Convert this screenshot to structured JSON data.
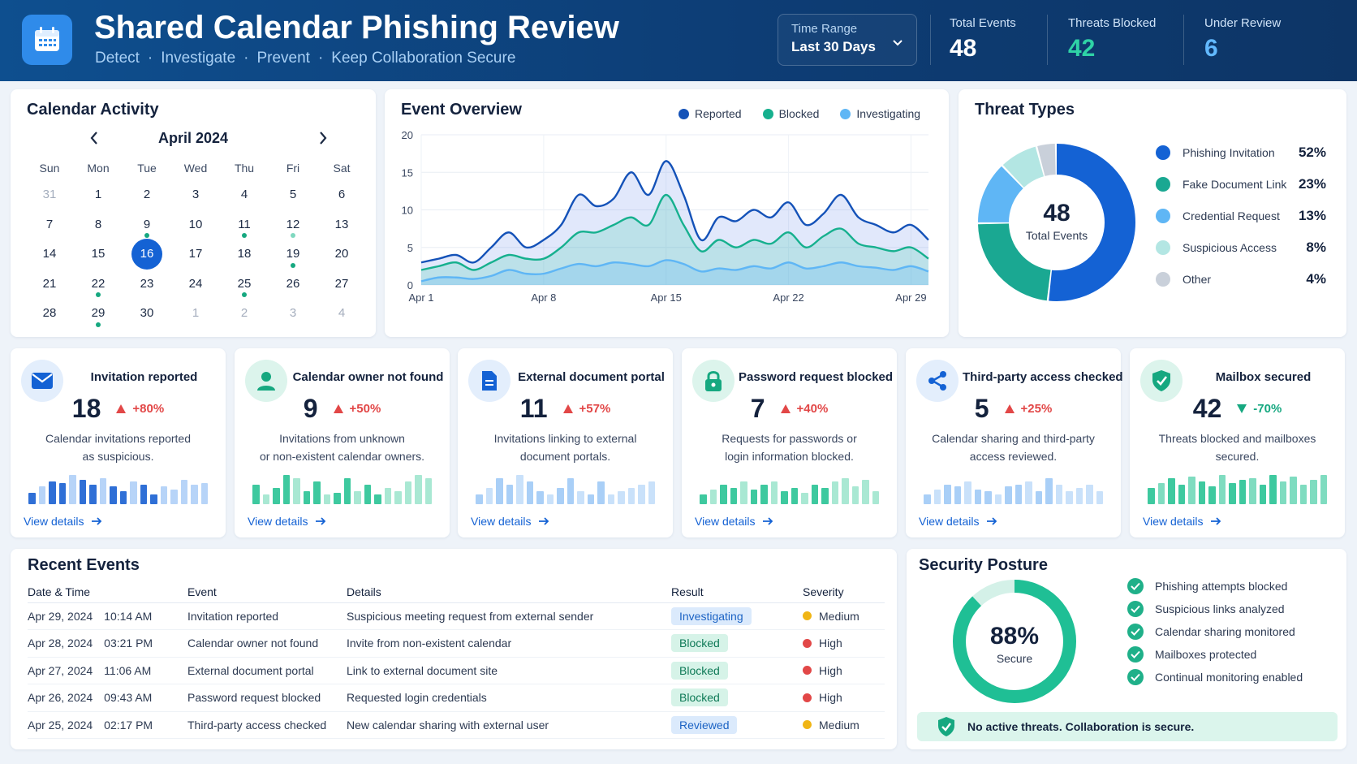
{
  "header": {
    "title": "Shared Calendar Phishing Review",
    "subtitle": [
      "Detect",
      "Investigate",
      "Prevent",
      "Keep Collaboration Secure"
    ],
    "time_range_label": "Time Range",
    "time_range_value": "Last 30 Days",
    "kpis": [
      {
        "label": "Total Events",
        "value": "48",
        "color": "#ffffff"
      },
      {
        "label": "Threats Blocked",
        "value": "42",
        "color": "#2fd3a6"
      },
      {
        "label": "Under Review",
        "value": "6",
        "color": "#62b9ff"
      }
    ]
  },
  "calendar": {
    "title": "Calendar Activity",
    "month": "April 2024",
    "weekdays": [
      "Sun",
      "Mon",
      "Tue",
      "Wed",
      "Thu",
      "Fri",
      "Sat"
    ],
    "weeks": [
      [
        {
          "d": "31",
          "muted": true
        },
        {
          "d": "1"
        },
        {
          "d": "2"
        },
        {
          "d": "3"
        },
        {
          "d": "4"
        },
        {
          "d": "5"
        },
        {
          "d": "6"
        }
      ],
      [
        {
          "d": "7"
        },
        {
          "d": "8"
        },
        {
          "d": "9",
          "dot": "dark"
        },
        {
          "d": "10"
        },
        {
          "d": "11",
          "dot": "dark"
        },
        {
          "d": "12",
          "dot": "light"
        },
        {
          "d": "13"
        }
      ],
      [
        {
          "d": "14"
        },
        {
          "d": "15"
        },
        {
          "d": "16",
          "today": true
        },
        {
          "d": "17"
        },
        {
          "d": "18"
        },
        {
          "d": "19",
          "dot": "dark"
        },
        {
          "d": "20"
        }
      ],
      [
        {
          "d": "21"
        },
        {
          "d": "22",
          "dot": "dark"
        },
        {
          "d": "23"
        },
        {
          "d": "24"
        },
        {
          "d": "25",
          "dot": "dark"
        },
        {
          "d": "26"
        },
        {
          "d": "27"
        }
      ],
      [
        {
          "d": "28"
        },
        {
          "d": "29",
          "dot": "dark"
        },
        {
          "d": "30"
        },
        {
          "d": "1",
          "muted": true
        },
        {
          "d": "2",
          "muted": true
        },
        {
          "d": "3",
          "muted": true
        },
        {
          "d": "4",
          "muted": true
        }
      ]
    ]
  },
  "event_overview": {
    "title": "Event Overview",
    "legend": [
      {
        "name": "Reported",
        "color": "#1452b8"
      },
      {
        "name": "Blocked",
        "color": "#16b08e"
      },
      {
        "name": "Investigating",
        "color": "#5fb6f5"
      }
    ]
  },
  "chart_data": {
    "type": "area",
    "x_ticks": [
      "Apr 1",
      "Apr 8",
      "Apr 15",
      "Apr 22",
      "Apr 29"
    ],
    "x": [
      1,
      2,
      3,
      4,
      5,
      6,
      7,
      8,
      9,
      10,
      11,
      12,
      13,
      14,
      15,
      16,
      17,
      18,
      19,
      20,
      21,
      22,
      23,
      24,
      25,
      26,
      27,
      28,
      29,
      30
    ],
    "ylim": [
      0,
      20
    ],
    "y_ticks": [
      0,
      5,
      10,
      15,
      20
    ],
    "grid": true,
    "series": [
      {
        "name": "Reported",
        "color": "#1452b8",
        "values": [
          3,
          3.5,
          4,
          3,
          5,
          7,
          5,
          6,
          8,
          12,
          10.5,
          11.5,
          15,
          12,
          16.5,
          12,
          6,
          9,
          8.5,
          10,
          9,
          11,
          8,
          9.5,
          12,
          9,
          8,
          7,
          8,
          6
        ]
      },
      {
        "name": "Blocked",
        "color": "#16b08e",
        "values": [
          2,
          2.5,
          3,
          2,
          3,
          4,
          3.5,
          3.5,
          5,
          7,
          7,
          8,
          9,
          8,
          12,
          8,
          4.5,
          6,
          5,
          6,
          5.5,
          7,
          5,
          6.5,
          7.5,
          5.5,
          5,
          4.5,
          5,
          3.5
        ]
      },
      {
        "name": "Investigating",
        "color": "#5fb6f5",
        "values": [
          0.5,
          1,
          1,
          0.8,
          1.2,
          2,
          1.5,
          1.5,
          2.2,
          2.8,
          2.5,
          3,
          2.8,
          2.5,
          3.3,
          2.8,
          1.8,
          2.2,
          2,
          2.5,
          2.2,
          3,
          2.2,
          2.5,
          3,
          2.5,
          2.3,
          2,
          2.5,
          1.8
        ]
      }
    ]
  },
  "threat_types": {
    "title": "Threat Types",
    "center_value": "48",
    "center_label": "Total Events",
    "items": [
      {
        "name": "Phishing Invitation",
        "pct": "52%",
        "value": 52,
        "color": "#1462d4"
      },
      {
        "name": "Fake Document Link",
        "pct": "23%",
        "value": 23,
        "color": "#1aa892"
      },
      {
        "name": "Credential Request",
        "pct": "13%",
        "value": 13,
        "color": "#5fb6f5"
      },
      {
        "name": "Suspicious Access",
        "pct": "8%",
        "value": 8,
        "color": "#b3e6e3"
      },
      {
        "name": "Other",
        "pct": "4%",
        "value": 4,
        "color": "#c9d0da"
      }
    ]
  },
  "cards": [
    {
      "icon": "envelope-icon",
      "icon_bg": "#e3eefc",
      "icon_color": "#1462d4",
      "title": "Invitation reported",
      "value": "18",
      "delta": "+80%",
      "trend": "up",
      "desc1": "Calendar invitations reported",
      "desc2": "as suspicious.",
      "bars_color": "#2f6fd6",
      "bars_color_light": "#b7d4f8",
      "bars": [
        0.35,
        0.55,
        0.7,
        0.65,
        0.9,
        0.75,
        0.6,
        0.8,
        0.55,
        0.4,
        0.7,
        0.6,
        0.3,
        0.55,
        0.45,
        0.75,
        0.6,
        0.65
      ],
      "link": "View details"
    },
    {
      "icon": "user-icon",
      "icon_bg": "#dcf4ec",
      "icon_color": "#16a880",
      "title": "Calendar owner not found",
      "value": "9",
      "delta": "+50%",
      "trend": "up",
      "desc1": "Invitations from unknown",
      "desc2": "or non-existent calendar owners.",
      "bars_color": "#3ec99f",
      "bars_color_light": "#a9e8d3",
      "bars": [
        0.6,
        0.3,
        0.5,
        0.9,
        0.8,
        0.4,
        0.7,
        0.3,
        0.35,
        0.8,
        0.4,
        0.6,
        0.3,
        0.5,
        0.4,
        0.7,
        0.9,
        0.8
      ],
      "link": "View details"
    },
    {
      "icon": "document-icon",
      "icon_bg": "#e3eefc",
      "icon_color": "#1462d4",
      "title": "External document portal",
      "value": "11",
      "delta": "+57%",
      "trend": "up",
      "desc1": "Invitations linking to external",
      "desc2": "document portals.",
      "bars_color": "#a9cff7",
      "bars_color_light": "#c9e1fa",
      "bars": [
        0.3,
        0.5,
        0.8,
        0.6,
        0.9,
        0.7,
        0.4,
        0.3,
        0.5,
        0.8,
        0.4,
        0.3,
        0.7,
        0.3,
        0.4,
        0.5,
        0.6,
        0.7
      ],
      "link": "View details"
    },
    {
      "icon": "lock-icon",
      "icon_bg": "#dcf4ec",
      "icon_color": "#16a880",
      "title": "Password request blocked",
      "value": "7",
      "delta": "+40%",
      "trend": "up",
      "desc1": "Requests for passwords or",
      "desc2": "login information blocked.",
      "bars_color": "#3ec99f",
      "bars_color_light": "#a9e8d3",
      "bars": [
        0.3,
        0.45,
        0.6,
        0.5,
        0.7,
        0.45,
        0.6,
        0.7,
        0.4,
        0.5,
        0.35,
        0.6,
        0.5,
        0.7,
        0.8,
        0.55,
        0.75,
        0.4
      ],
      "link": "View details"
    },
    {
      "icon": "share-icon",
      "icon_bg": "#e3eefc",
      "icon_color": "#1462d4",
      "title": "Third-party access checked",
      "value": "5",
      "delta": "+25%",
      "trend": "up",
      "desc1": "Calendar sharing and third-party",
      "desc2": "access reviewed.",
      "bars_color": "#a9cff7",
      "bars_color_light": "#c9e1fa",
      "bars": [
        0.3,
        0.45,
        0.6,
        0.55,
        0.7,
        0.45,
        0.4,
        0.3,
        0.55,
        0.6,
        0.7,
        0.4,
        0.8,
        0.6,
        0.4,
        0.5,
        0.6,
        0.4
      ],
      "link": "View details"
    },
    {
      "icon": "shield-check-icon",
      "icon_bg": "#dcf4ec",
      "icon_color": "#16a880",
      "title": "Mailbox secured",
      "value": "42",
      "delta": "-70%",
      "trend": "down",
      "desc1": "Threats blocked and mailboxes",
      "desc2": "secured.",
      "bars_color": "#3ec99f",
      "bars_color_light": "#7fdcc0",
      "bars": [
        0.5,
        0.65,
        0.8,
        0.6,
        0.85,
        0.7,
        0.55,
        0.9,
        0.65,
        0.75,
        0.8,
        0.6,
        0.9,
        0.7,
        0.85,
        0.6,
        0.75,
        0.9
      ],
      "link": "View details"
    }
  ],
  "recent_events": {
    "title": "Recent Events",
    "columns": [
      "Date & Time",
      "Event",
      "Details",
      "Result",
      "Severity"
    ],
    "rows": [
      {
        "date": "Apr 29, 2024",
        "time": "10:14 AM",
        "event": "Invitation reported",
        "details": "Suspicious meeting request from external sender",
        "result": "Investigating",
        "result_type": "investigating",
        "severity": "Medium",
        "sev_color": "#f0b515"
      },
      {
        "date": "Apr 28, 2024",
        "time": "03:21 PM",
        "event": "Calendar owner not found",
        "details": "Invite from non-existent calendar",
        "result": "Blocked",
        "result_type": "blocked",
        "severity": "High",
        "sev_color": "#e24747"
      },
      {
        "date": "Apr 27, 2024",
        "time": "11:06 AM",
        "event": "External document portal",
        "details": "Link to external document site",
        "result": "Blocked",
        "result_type": "blocked",
        "severity": "High",
        "sev_color": "#e24747"
      },
      {
        "date": "Apr 26, 2024",
        "time": "09:43 AM",
        "event": "Password request blocked",
        "details": "Requested login credentials",
        "result": "Blocked",
        "result_type": "blocked",
        "severity": "High",
        "sev_color": "#e24747"
      },
      {
        "date": "Apr 25, 2024",
        "time": "02:17 PM",
        "event": "Third-party access checked",
        "details": "New calendar sharing with external user",
        "result": "Reviewed",
        "result_type": "reviewed",
        "severity": "Medium",
        "sev_color": "#f0b515"
      }
    ]
  },
  "security_posture": {
    "title": "Security Posture",
    "value": "88%",
    "fraction": 0.88,
    "label": "Secure",
    "checks": [
      "Phishing attempts blocked",
      "Suspicious links analyzed",
      "Calendar sharing monitored",
      "Mailboxes protected",
      "Continual monitoring enabled"
    ],
    "banner": "No active threats. Collaboration is secure."
  }
}
